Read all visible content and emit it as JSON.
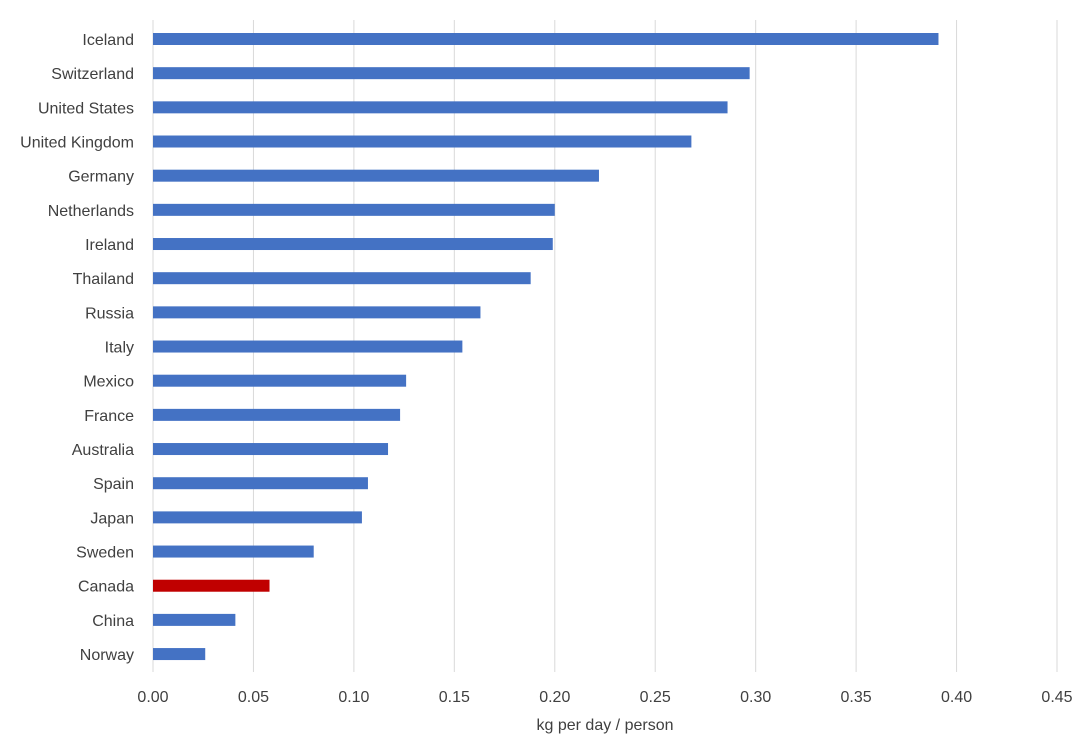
{
  "chart_data": {
    "type": "bar",
    "orientation": "horizontal",
    "title": "",
    "xlabel": "kg per day / person",
    "ylabel": "",
    "xlim": [
      0,
      0.45
    ],
    "xticks": [
      "0.00",
      "0.05",
      "0.10",
      "0.15",
      "0.20",
      "0.25",
      "0.30",
      "0.35",
      "0.40",
      "0.45"
    ],
    "grid": "vertical",
    "legend": "none",
    "colors": {
      "default": "#4472C4",
      "highlight": "#C00000",
      "grid": "#D9D9D9",
      "text": "#404040"
    },
    "highlight_category": "Canada",
    "categories": [
      "Iceland",
      "Switzerland",
      "United States",
      "United Kingdom",
      "Germany",
      "Netherlands",
      "Ireland",
      "Thailand",
      "Russia",
      "Italy",
      "Mexico",
      "France",
      "Australia",
      "Spain",
      "Japan",
      "Sweden",
      "Canada",
      "China",
      "Norway"
    ],
    "values": [
      0.391,
      0.297,
      0.286,
      0.268,
      0.222,
      0.2,
      0.199,
      0.188,
      0.163,
      0.154,
      0.126,
      0.123,
      0.117,
      0.107,
      0.104,
      0.08,
      0.058,
      0.041,
      0.026
    ]
  }
}
